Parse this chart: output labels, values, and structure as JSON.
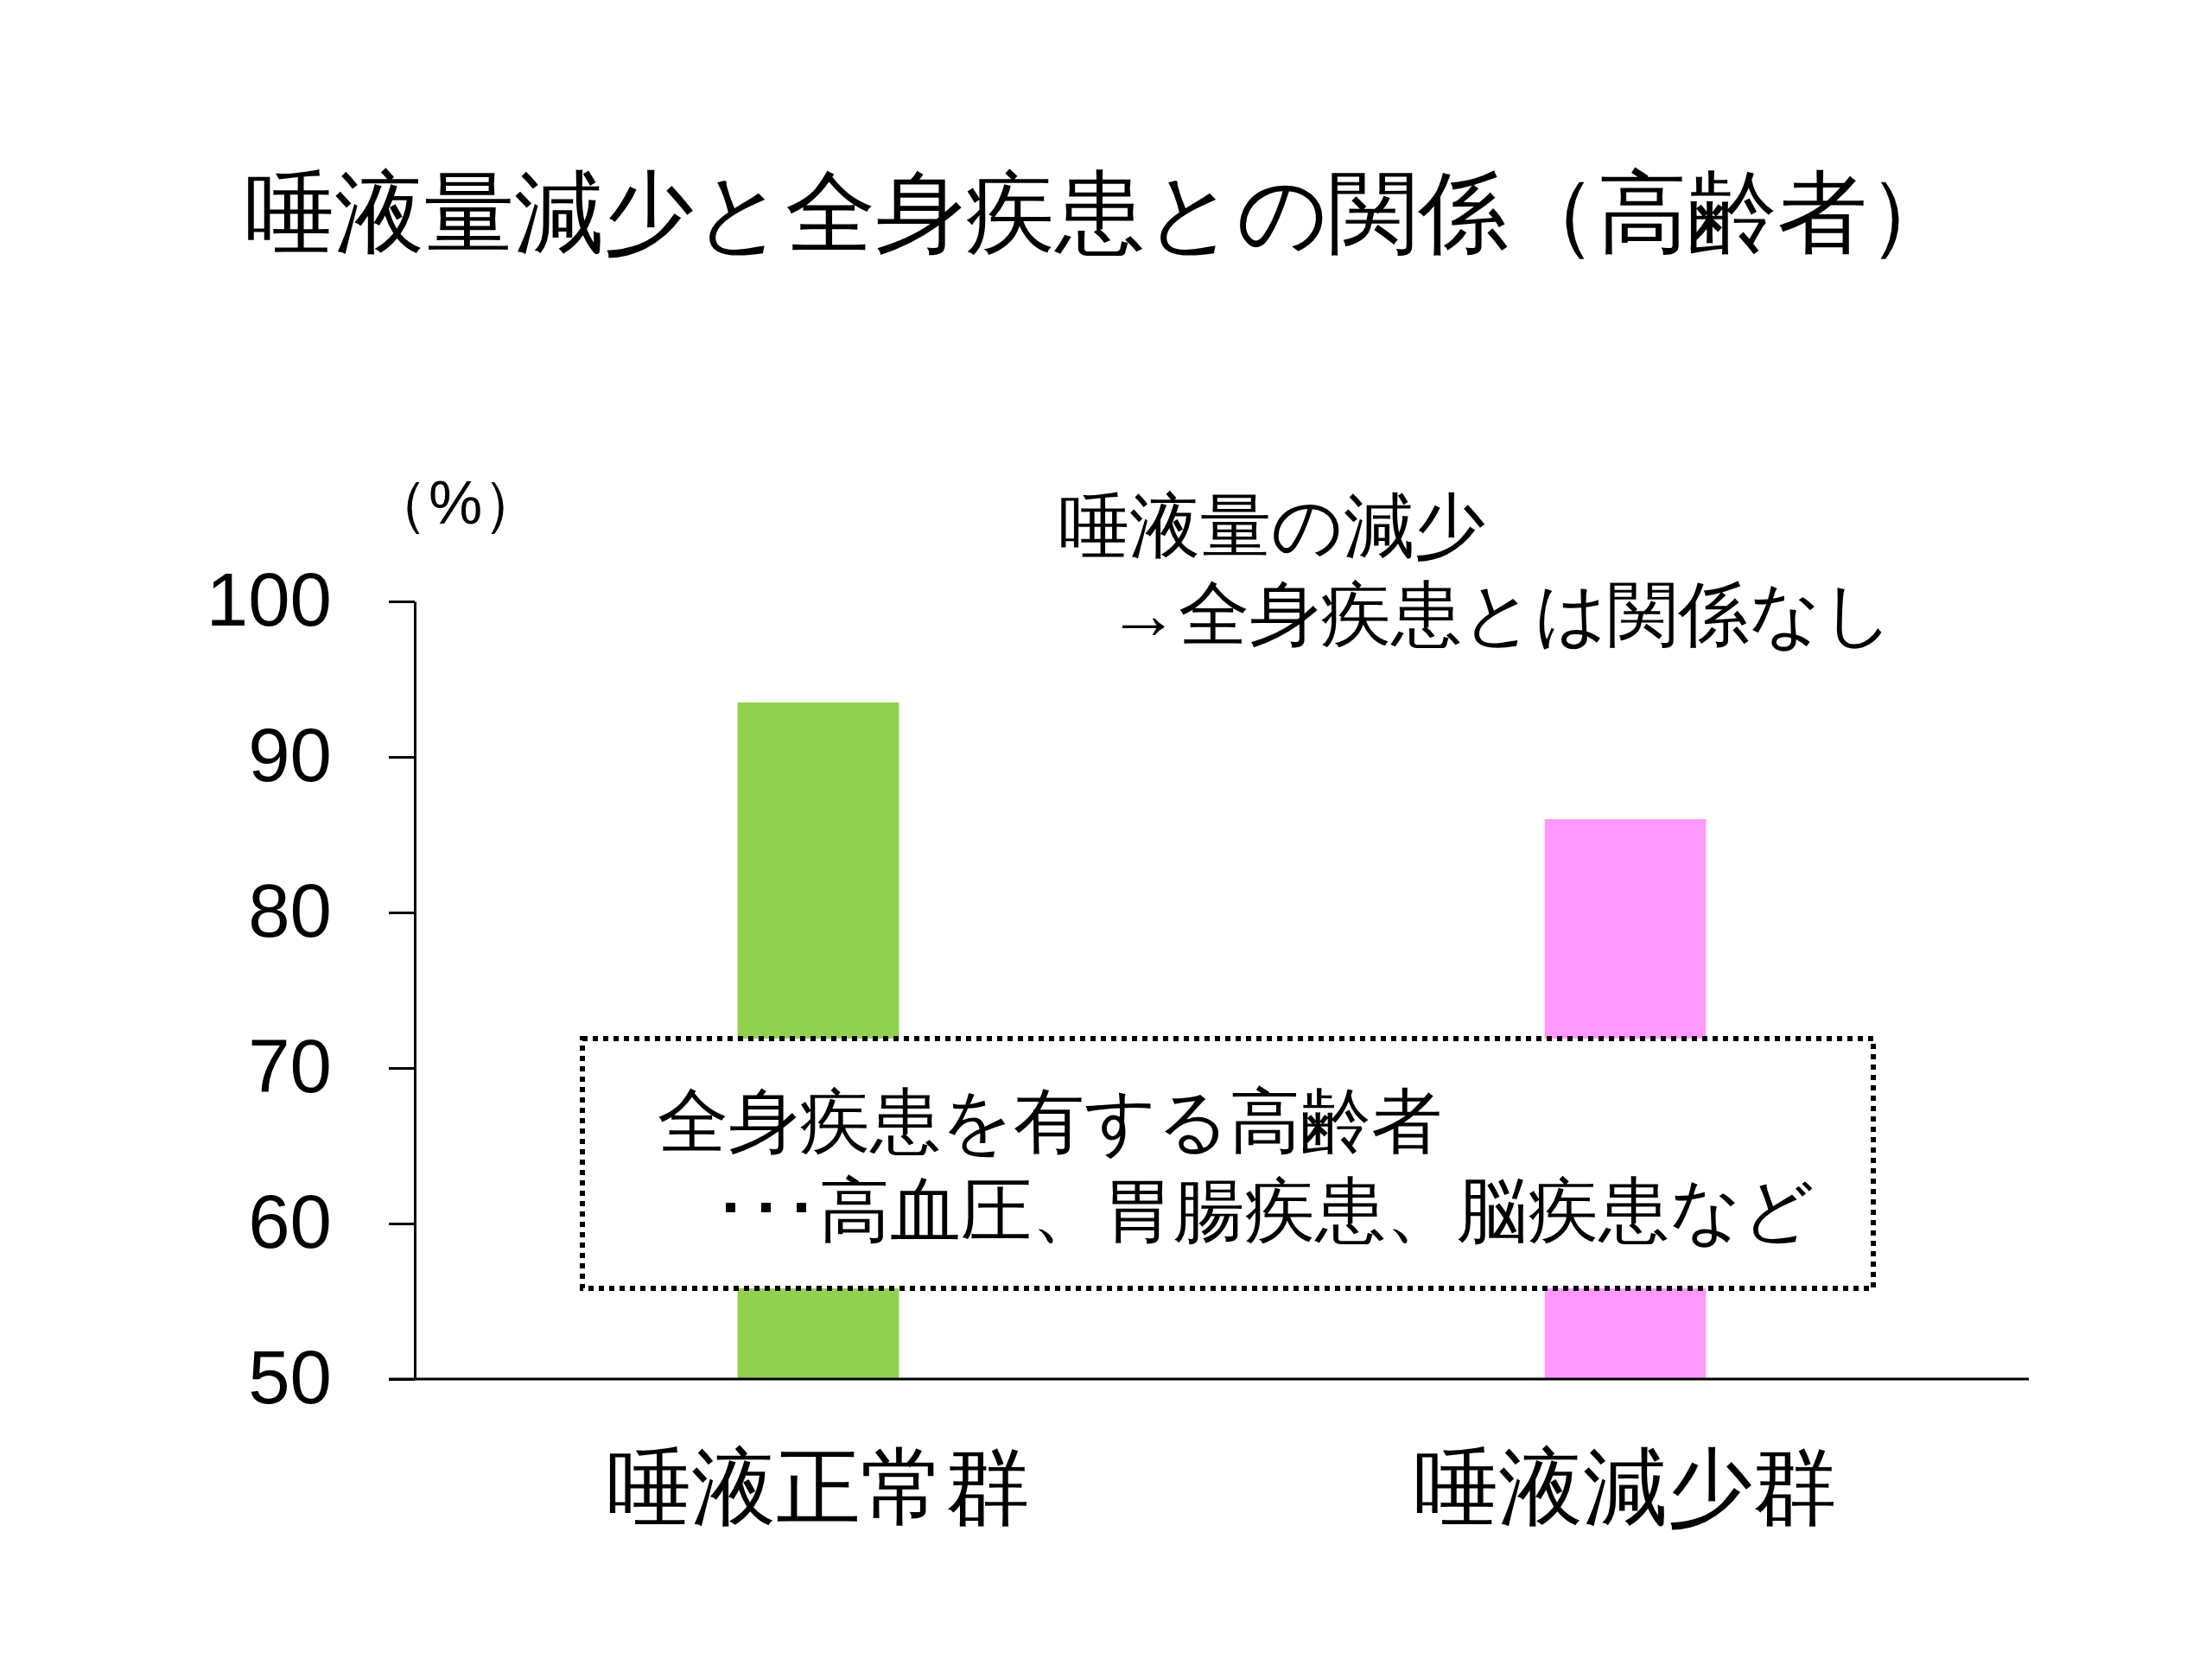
{
  "chart_data": {
    "type": "bar",
    "title": "唾液量減少と全身疾患との関係（高齢者）",
    "ylabel": "（%）",
    "categories": [
      "唾液正常群",
      "唾液減少群"
    ],
    "values": [
      93.5,
      86
    ],
    "colors": [
      "#92d050",
      "#ff99ff"
    ],
    "ylim": [
      50,
      100
    ],
    "yticks": [
      50,
      60,
      70,
      80,
      90,
      100
    ],
    "annotations": [
      "唾液量の減少",
      "→全身疾患とは関係なし",
      "全身疾患を有する高齢者",
      "･･･高血圧、胃腸疾患、脳疾患など"
    ]
  }
}
